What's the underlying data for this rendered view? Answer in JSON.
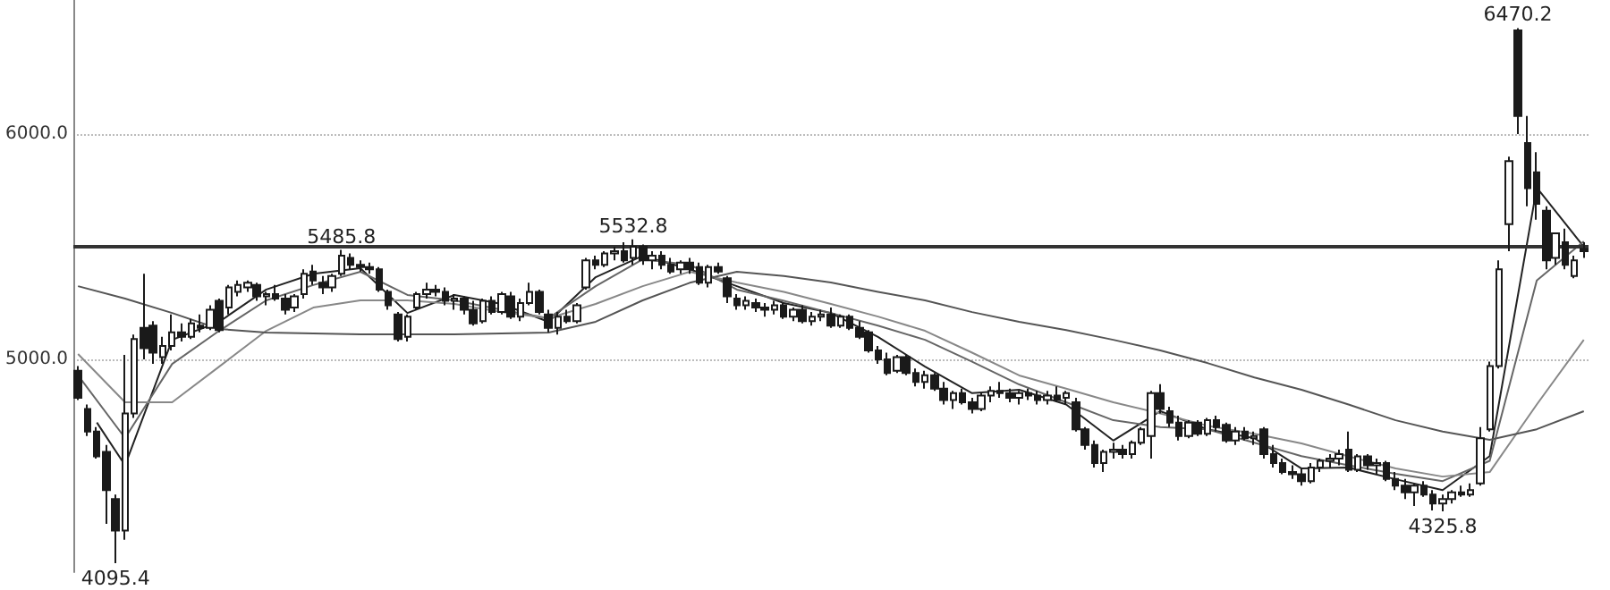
{
  "chart_data": {
    "type": "candlestick",
    "color": "#1a1a1a",
    "grid": "y",
    "tick_labels": "y",
    "ylim": [
      4056,
      6595
    ],
    "yticks": [
      {
        "value": 5000,
        "label": "5000.0"
      },
      {
        "value": 6000,
        "label": "6000.0"
      }
    ],
    "ref_lines": [
      {
        "axis": "y",
        "value": 5500,
        "color": "#333333",
        "line_style": "solid"
      }
    ],
    "annotations": [
      {
        "text": "6470.2",
        "y": 6470.2
      },
      {
        "text": "5532.8",
        "y": 5532.8
      },
      {
        "text": "5485.8",
        "y": 5485.8
      },
      {
        "text": "4325.8",
        "y": 4325.8
      },
      {
        "text": "4095.4",
        "y": 4095.4
      }
    ],
    "categories": [
      null,
      null,
      null,
      null,
      null,
      null,
      null,
      null,
      null,
      null,
      null,
      null,
      null,
      null,
      null,
      null,
      null,
      null,
      null,
      null,
      null,
      null,
      null,
      null,
      null,
      null,
      null,
      null,
      null,
      null,
      null,
      null,
      null,
      null,
      null,
      null,
      null,
      null,
      null,
      null,
      null,
      null,
      null,
      null,
      null,
      null,
      null,
      null,
      null,
      null,
      null,
      null,
      null,
      null,
      null,
      null,
      null,
      null,
      null,
      null,
      null,
      null,
      null,
      null,
      null,
      null,
      null,
      null,
      null,
      null,
      null,
      null,
      null,
      null,
      null,
      null,
      null,
      null,
      null,
      null,
      null,
      null,
      null,
      null,
      null,
      null,
      null,
      null,
      null,
      null,
      null,
      null,
      null,
      null,
      null,
      null,
      null,
      null,
      null,
      null,
      null,
      null,
      null,
      null,
      null,
      null,
      null,
      null,
      null,
      null,
      null,
      null,
      null,
      null,
      null,
      null,
      null,
      null,
      null,
      null,
      null,
      null,
      null,
      null,
      null,
      null,
      null,
      null,
      null,
      null,
      null,
      null,
      null,
      null,
      null,
      null,
      null,
      null,
      null,
      null,
      null,
      null,
      null,
      null,
      null,
      null,
      null,
      null,
      null,
      null,
      null,
      null,
      null,
      null,
      null,
      null,
      null,
      null,
      null,
      null,
      null
    ],
    "ohlc": [
      [
        4950,
        4970,
        4820,
        4830
      ],
      [
        4780,
        4800,
        4660,
        4680
      ],
      [
        4680,
        4700,
        4560,
        4570
      ],
      [
        4590,
        4620,
        4270,
        4420
      ],
      [
        4380,
        4400,
        4095.4,
        4240
      ],
      [
        4240,
        5020,
        4200,
        4760
      ],
      [
        4760,
        5110,
        4740,
        5090
      ],
      [
        5140,
        5380,
        5000,
        5050
      ],
      [
        5150,
        5170,
        4980,
        5030
      ],
      [
        5010,
        5100,
        4980,
        5060
      ],
      [
        5060,
        5200,
        5040,
        5120
      ],
      [
        5120,
        5160,
        5080,
        5100
      ],
      [
        5100,
        5180,
        5090,
        5160
      ],
      [
        5150,
        5200,
        5120,
        5140
      ],
      [
        5140,
        5240,
        5130,
        5220
      ],
      [
        5260,
        5270,
        5120,
        5130
      ],
      [
        5230,
        5330,
        5200,
        5320
      ],
      [
        5300,
        5350,
        5280,
        5330
      ],
      [
        5320,
        5350,
        5300,
        5340
      ],
      [
        5330,
        5340,
        5260,
        5280
      ],
      [
        5280,
        5300,
        5240,
        5290
      ],
      [
        5290,
        5330,
        5260,
        5270
      ],
      [
        5270,
        5290,
        5200,
        5220
      ],
      [
        5230,
        5290,
        5210,
        5280
      ],
      [
        5290,
        5400,
        5270,
        5380
      ],
      [
        5390,
        5420,
        5330,
        5350
      ],
      [
        5340,
        5370,
        5290,
        5320
      ],
      [
        5320,
        5380,
        5300,
        5370
      ],
      [
        5380,
        5485.8,
        5370,
        5460
      ],
      [
        5450,
        5470,
        5400,
        5420
      ],
      [
        5420,
        5440,
        5390,
        5410
      ],
      [
        5410,
        5430,
        5380,
        5400
      ],
      [
        5400,
        5410,
        5300,
        5310
      ],
      [
        5300,
        5310,
        5220,
        5240
      ],
      [
        5200,
        5210,
        5080,
        5090
      ],
      [
        5100,
        5200,
        5080,
        5190
      ],
      [
        5230,
        5300,
        5220,
        5290
      ],
      [
        5290,
        5340,
        5270,
        5310
      ],
      [
        5310,
        5330,
        5280,
        5300
      ],
      [
        5300,
        5320,
        5240,
        5260
      ],
      [
        5260,
        5290,
        5220,
        5270
      ],
      [
        5270,
        5280,
        5200,
        5220
      ],
      [
        5220,
        5260,
        5150,
        5160
      ],
      [
        5170,
        5270,
        5160,
        5260
      ],
      [
        5260,
        5280,
        5200,
        5210
      ],
      [
        5210,
        5300,
        5200,
        5290
      ],
      [
        5280,
        5300,
        5180,
        5190
      ],
      [
        5190,
        5270,
        5170,
        5250
      ],
      [
        5250,
        5340,
        5240,
        5300
      ],
      [
        5300,
        5310,
        5200,
        5210
      ],
      [
        5200,
        5220,
        5120,
        5140
      ],
      [
        5140,
        5210,
        5110,
        5190
      ],
      [
        5190,
        5220,
        5160,
        5170
      ],
      [
        5170,
        5250,
        5160,
        5240
      ],
      [
        5320,
        5450,
        5310,
        5440
      ],
      [
        5440,
        5460,
        5400,
        5420
      ],
      [
        5420,
        5480,
        5410,
        5470
      ],
      [
        5470,
        5500,
        5440,
        5480
      ],
      [
        5480,
        5520,
        5430,
        5440
      ],
      [
        5450,
        5532.8,
        5420,
        5500
      ],
      [
        5500,
        5510,
        5420,
        5440
      ],
      [
        5440,
        5480,
        5400,
        5460
      ],
      [
        5460,
        5480,
        5400,
        5420
      ],
      [
        5420,
        5450,
        5380,
        5390
      ],
      [
        5400,
        5440,
        5380,
        5430
      ],
      [
        5430,
        5450,
        5380,
        5400
      ],
      [
        5410,
        5430,
        5330,
        5340
      ],
      [
        5340,
        5420,
        5320,
        5410
      ],
      [
        5410,
        5430,
        5380,
        5390
      ],
      [
        5360,
        5370,
        5250,
        5280
      ],
      [
        5270,
        5290,
        5220,
        5240
      ],
      [
        5240,
        5280,
        5220,
        5260
      ],
      [
        5250,
        5270,
        5210,
        5230
      ],
      [
        5230,
        5250,
        5190,
        5220
      ],
      [
        5220,
        5260,
        5200,
        5240
      ],
      [
        5240,
        5250,
        5180,
        5190
      ],
      [
        5190,
        5230,
        5170,
        5220
      ],
      [
        5220,
        5240,
        5160,
        5170
      ],
      [
        5170,
        5210,
        5150,
        5190
      ],
      [
        5190,
        5220,
        5170,
        5200
      ],
      [
        5200,
        5230,
        5140,
        5150
      ],
      [
        5150,
        5200,
        5140,
        5190
      ],
      [
        5190,
        5200,
        5130,
        5140
      ],
      [
        5140,
        5170,
        5090,
        5100
      ],
      [
        5120,
        5130,
        5030,
        5040
      ],
      [
        5040,
        5060,
        4980,
        5000
      ],
      [
        5000,
        5030,
        4930,
        4940
      ],
      [
        4950,
        5020,
        4940,
        5010
      ],
      [
        5010,
        5020,
        4930,
        4940
      ],
      [
        4940,
        4960,
        4880,
        4900
      ],
      [
        4900,
        4950,
        4870,
        4930
      ],
      [
        4930,
        4940,
        4860,
        4870
      ],
      [
        4870,
        4900,
        4800,
        4820
      ],
      [
        4820,
        4860,
        4780,
        4850
      ],
      [
        4850,
        4870,
        4800,
        4810
      ],
      [
        4810,
        4830,
        4760,
        4780
      ],
      [
        4780,
        4850,
        4770,
        4840
      ],
      [
        4840,
        4880,
        4810,
        4860
      ],
      [
        4860,
        4900,
        4830,
        4850
      ],
      [
        4850,
        4870,
        4810,
        4830
      ],
      [
        4830,
        4860,
        4800,
        4850
      ],
      [
        4850,
        4870,
        4820,
        4840
      ],
      [
        4840,
        4860,
        4800,
        4820
      ],
      [
        4820,
        4860,
        4800,
        4840
      ],
      [
        4840,
        4880,
        4810,
        4820
      ],
      [
        4830,
        4860,
        4800,
        4850
      ],
      [
        4810,
        4830,
        4680,
        4690
      ],
      [
        4690,
        4700,
        4600,
        4620
      ],
      [
        4620,
        4640,
        4520,
        4540
      ],
      [
        4540,
        4600,
        4500,
        4590
      ],
      [
        4590,
        4630,
        4560,
        4600
      ],
      [
        4600,
        4620,
        4560,
        4580
      ],
      [
        4580,
        4640,
        4560,
        4630
      ],
      [
        4630,
        4700,
        4620,
        4690
      ],
      [
        4660,
        4860,
        4560,
        4850
      ],
      [
        4850,
        4890,
        4760,
        4780
      ],
      [
        4770,
        4790,
        4700,
        4720
      ],
      [
        4720,
        4750,
        4640,
        4660
      ],
      [
        4660,
        4730,
        4650,
        4720
      ],
      [
        4720,
        4730,
        4660,
        4670
      ],
      [
        4670,
        4740,
        4660,
        4730
      ],
      [
        4730,
        4750,
        4680,
        4700
      ],
      [
        4710,
        4720,
        4630,
        4640
      ],
      [
        4640,
        4700,
        4620,
        4680
      ],
      [
        4680,
        4700,
        4640,
        4650
      ],
      [
        4650,
        4680,
        4620,
        4660
      ],
      [
        4690,
        4700,
        4560,
        4580
      ],
      [
        4580,
        4620,
        4520,
        4540
      ],
      [
        4540,
        4560,
        4490,
        4500
      ],
      [
        4500,
        4530,
        4470,
        4490
      ],
      [
        4490,
        4520,
        4440,
        4460
      ],
      [
        4460,
        4540,
        4450,
        4520
      ],
      [
        4520,
        4560,
        4500,
        4550
      ],
      [
        4550,
        4580,
        4520,
        4560
      ],
      [
        4560,
        4600,
        4530,
        4580
      ],
      [
        4600,
        4680,
        4500,
        4510
      ],
      [
        4510,
        4580,
        4500,
        4570
      ],
      [
        4570,
        4580,
        4510,
        4530
      ],
      [
        4530,
        4560,
        4490,
        4540
      ],
      [
        4540,
        4550,
        4460,
        4470
      ],
      [
        4470,
        4500,
        4420,
        4440
      ],
      [
        4440,
        4470,
        4380,
        4410
      ],
      [
        4410,
        4450,
        4350,
        4440
      ],
      [
        4440,
        4460,
        4390,
        4400
      ],
      [
        4400,
        4420,
        4330,
        4360
      ],
      [
        4360,
        4400,
        4325.8,
        4380
      ],
      [
        4380,
        4420,
        4360,
        4410
      ],
      [
        4410,
        4440,
        4390,
        4400
      ],
      [
        4400,
        4450,
        4390,
        4420
      ],
      [
        4450,
        4700,
        4440,
        4650
      ],
      [
        4690,
        4990,
        4680,
        4970
      ],
      [
        4970,
        5440,
        4960,
        5400
      ],
      [
        5600,
        5900,
        5480,
        5880
      ],
      [
        6460,
        6470.2,
        6000,
        6080
      ],
      [
        5960,
        6080,
        5680,
        5760
      ],
      [
        5830,
        5920,
        5620,
        5690
      ],
      [
        5660,
        5680,
        5400,
        5440
      ],
      [
        5450,
        5560,
        5420,
        5560
      ],
      [
        5520,
        5580,
        5400,
        5420
      ],
      [
        5370,
        5460,
        5360,
        5440
      ],
      [
        5490,
        5520,
        5450,
        5480
      ]
    ],
    "series": [
      {
        "type": "line",
        "color": "#222222",
        "values": [
          null,
          null,
          4720,
          null,
          null,
          4530,
          null,
          null,
          null,
          null,
          5087,
          null,
          null,
          null,
          null,
          5167,
          null,
          null,
          null,
          null,
          5310,
          null,
          null,
          null,
          null,
          5380,
          null,
          null,
          null,
          null,
          5405,
          null,
          null,
          null,
          null,
          5206,
          null,
          null,
          null,
          null,
          5286,
          null,
          null,
          null,
          null,
          5246,
          null,
          null,
          null,
          null,
          5167,
          null,
          null,
          null,
          null,
          5365,
          null,
          null,
          null,
          null,
          5460,
          null,
          null,
          null,
          null,
          5400,
          null,
          null,
          null,
          null,
          5325,
          null,
          null,
          null,
          null,
          5250,
          null,
          null,
          null,
          null,
          5206,
          null,
          null,
          null,
          null,
          5100,
          null,
          null,
          null,
          null,
          4968,
          null,
          null,
          null,
          null,
          4850,
          null,
          null,
          null,
          null,
          4865,
          null,
          null,
          null,
          null,
          4800,
          null,
          null,
          null,
          null,
          4640,
          null,
          null,
          null,
          null,
          4770,
          null,
          null,
          null,
          null,
          4690,
          null,
          null,
          null,
          null,
          4650,
          null,
          null,
          null,
          null,
          4516,
          null,
          null,
          null,
          null,
          4520,
          null,
          null,
          null,
          null,
          4468,
          null,
          null,
          null,
          null,
          4420,
          null,
          null,
          null,
          null,
          4571,
          null,
          null,
          null,
          null,
          5762,
          null,
          null,
          null,
          null,
          5500
        ]
      },
      {
        "type": "line",
        "color": "#666666",
        "values": [
          4929,
          null,
          null,
          null,
          null,
          4651,
          null,
          null,
          null,
          null,
          4980,
          null,
          null,
          null,
          null,
          5127,
          null,
          null,
          null,
          null,
          5262,
          null,
          null,
          null,
          null,
          5330,
          null,
          null,
          null,
          null,
          5389,
          null,
          null,
          null,
          null,
          5286,
          null,
          null,
          null,
          null,
          5262,
          null,
          null,
          null,
          null,
          5220,
          null,
          null,
          null,
          null,
          5183,
          null,
          null,
          null,
          null,
          5325,
          null,
          null,
          null,
          null,
          5444,
          null,
          null,
          null,
          null,
          5421,
          null,
          null,
          null,
          null,
          5310,
          null,
          null,
          null,
          null,
          5260,
          null,
          null,
          null,
          null,
          5206,
          null,
          null,
          null,
          null,
          5150,
          null,
          null,
          null,
          null,
          5087,
          null,
          null,
          null,
          null,
          4990,
          null,
          null,
          null,
          null,
          4889,
          null,
          null,
          null,
          null,
          4810,
          null,
          null,
          null,
          null,
          4730,
          null,
          null,
          null,
          null,
          4700,
          null,
          null,
          null,
          null,
          4690,
          null,
          null,
          null,
          null,
          4630,
          null,
          null,
          null,
          null,
          4571,
          null,
          null,
          null,
          null,
          4530,
          null,
          null,
          null,
          null,
          4492,
          null,
          null,
          null,
          null,
          4460,
          null,
          null,
          null,
          null,
          4550,
          null,
          null,
          null,
          null,
          5350,
          null,
          null,
          null,
          null,
          5524
        ]
      },
      {
        "type": "line",
        "color": "#888888",
        "values": [
          5024,
          null,
          null,
          null,
          null,
          4810,
          null,
          null,
          null,
          null,
          4810,
          null,
          null,
          null,
          null,
          4968,
          null,
          null,
          null,
          null,
          5127,
          null,
          null,
          null,
          null,
          5230,
          null,
          null,
          null,
          null,
          5262,
          null,
          null,
          null,
          null,
          5262,
          null,
          null,
          null,
          null,
          5246,
          null,
          null,
          null,
          null,
          5210,
          null,
          null,
          null,
          null,
          5183,
          null,
          null,
          null,
          null,
          5246,
          null,
          null,
          null,
          null,
          5325,
          null,
          null,
          null,
          null,
          5389,
          null,
          null,
          null,
          null,
          5341,
          null,
          null,
          null,
          null,
          5300,
          null,
          null,
          null,
          null,
          5246,
          null,
          null,
          null,
          null,
          5190,
          null,
          null,
          null,
          null,
          5127,
          null,
          null,
          null,
          null,
          5030,
          null,
          null,
          null,
          null,
          4929,
          null,
          null,
          null,
          null,
          4870,
          null,
          null,
          null,
          null,
          4810,
          null,
          null,
          null,
          null,
          4760,
          null,
          null,
          null,
          null,
          4706,
          null,
          null,
          null,
          null,
          4670,
          null,
          null,
          null,
          null,
          4627,
          null,
          null,
          null,
          null,
          4570,
          null,
          null,
          null,
          null,
          4516,
          null,
          null,
          null,
          null,
          4480,
          null,
          null,
          null,
          null,
          4500,
          null,
          null,
          null,
          null,
          4800,
          null,
          null,
          null,
          null,
          5087
        ]
      },
      {
        "type": "line",
        "color": "#555555",
        "values": [
          5325,
          null,
          null,
          null,
          null,
          5270,
          null,
          null,
          null,
          null,
          5206,
          null,
          null,
          null,
          null,
          5135,
          null,
          null,
          null,
          null,
          5119,
          null,
          null,
          null,
          null,
          5115,
          null,
          null,
          null,
          null,
          5111,
          null,
          null,
          null,
          null,
          5111,
          null,
          null,
          null,
          null,
          5111,
          null,
          null,
          null,
          null,
          5115,
          null,
          null,
          null,
          null,
          5119,
          null,
          null,
          null,
          null,
          5167,
          null,
          null,
          null,
          null,
          5262,
          null,
          null,
          null,
          null,
          5340,
          null,
          null,
          null,
          null,
          5389,
          null,
          null,
          null,
          null,
          5370,
          null,
          null,
          null,
          null,
          5341,
          null,
          null,
          null,
          null,
          5300,
          null,
          null,
          null,
          null,
          5262,
          null,
          null,
          null,
          null,
          5210,
          null,
          null,
          null,
          null,
          5167,
          null,
          null,
          null,
          null,
          5130,
          null,
          null,
          null,
          null,
          5087,
          null,
          null,
          null,
          null,
          5040,
          null,
          null,
          null,
          null,
          4984,
          null,
          null,
          null,
          null,
          4920,
          null,
          null,
          null,
          null,
          4865,
          null,
          null,
          null,
          null,
          4800,
          null,
          null,
          null,
          null,
          4730,
          null,
          null,
          null,
          null,
          4680,
          null,
          null,
          null,
          null,
          4643,
          null,
          null,
          null,
          null,
          4690,
          null,
          null,
          null,
          null,
          4770
        ]
      }
    ]
  }
}
